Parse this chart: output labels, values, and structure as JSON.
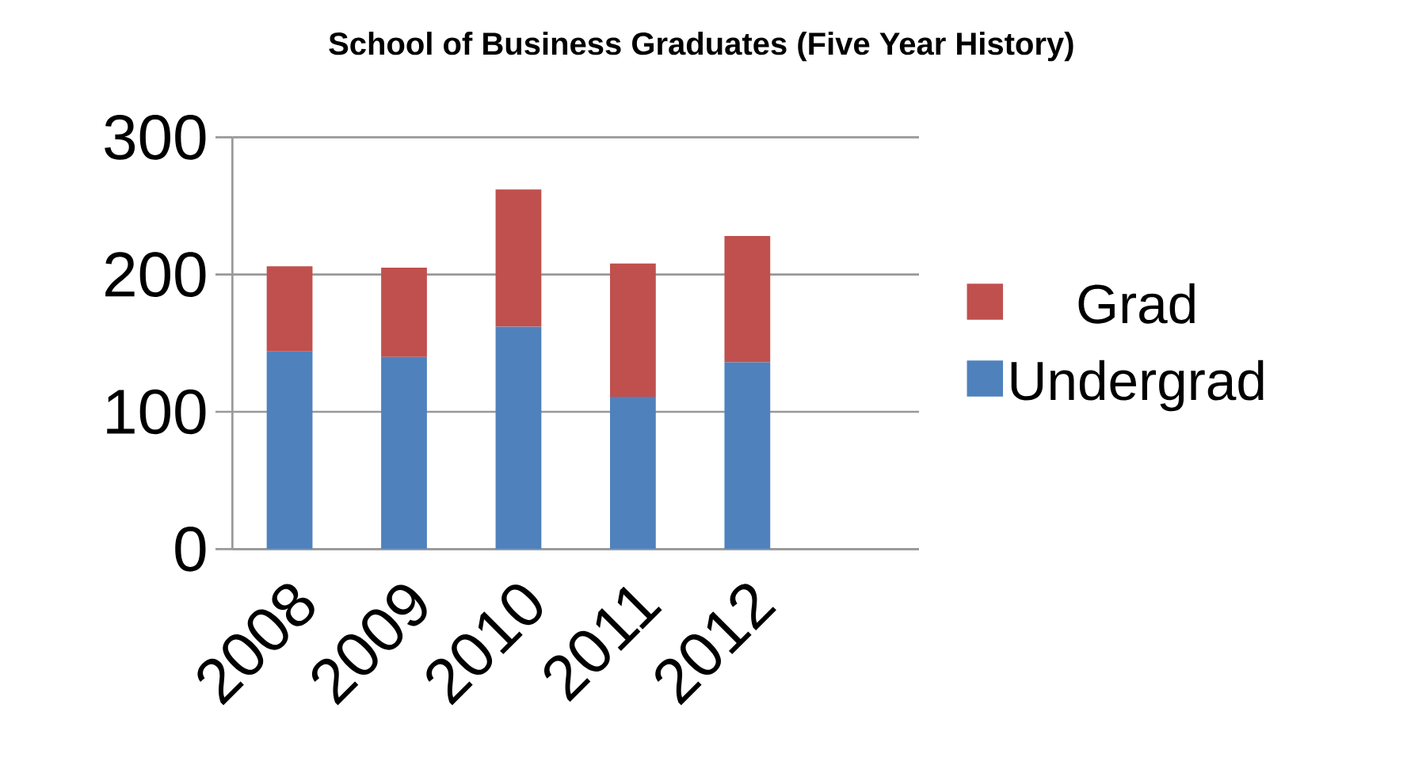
{
  "chart_data": {
    "type": "bar",
    "stacked": true,
    "title": "School of Business Graduates (Five Year History)",
    "categories": [
      "2008",
      "2009",
      "2010",
      "2011",
      "2012",
      null
    ],
    "series": [
      {
        "name": "Undergrad",
        "color": "#4f81bd",
        "values": [
          144,
          140,
          162,
          111,
          136,
          null
        ]
      },
      {
        "name": "Grad",
        "color": "#c0504d",
        "values": [
          62,
          65,
          100,
          97,
          92,
          null
        ]
      }
    ],
    "ylim": [
      0,
      300
    ],
    "yticks": [
      0,
      100,
      200,
      300
    ],
    "grid": "y",
    "legend": "right"
  }
}
